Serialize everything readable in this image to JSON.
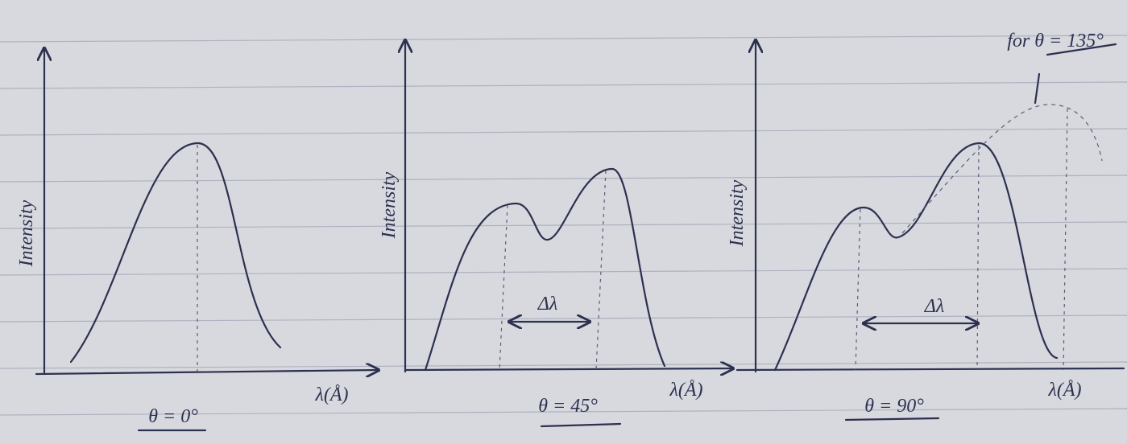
{
  "panels": [
    {
      "y_label": "Intensity",
      "x_label": "λ(Å)",
      "caption": "θ = 0°"
    },
    {
      "y_label": "Intensity",
      "x_label": "λ(Å)",
      "caption": "θ = 45°",
      "delta_label": "Δλ"
    },
    {
      "y_label": "Intensity",
      "x_label": "λ(Å)",
      "caption": "θ = 90°",
      "delta_label": "Δλ"
    }
  ],
  "annotation": "for θ = 135°"
}
